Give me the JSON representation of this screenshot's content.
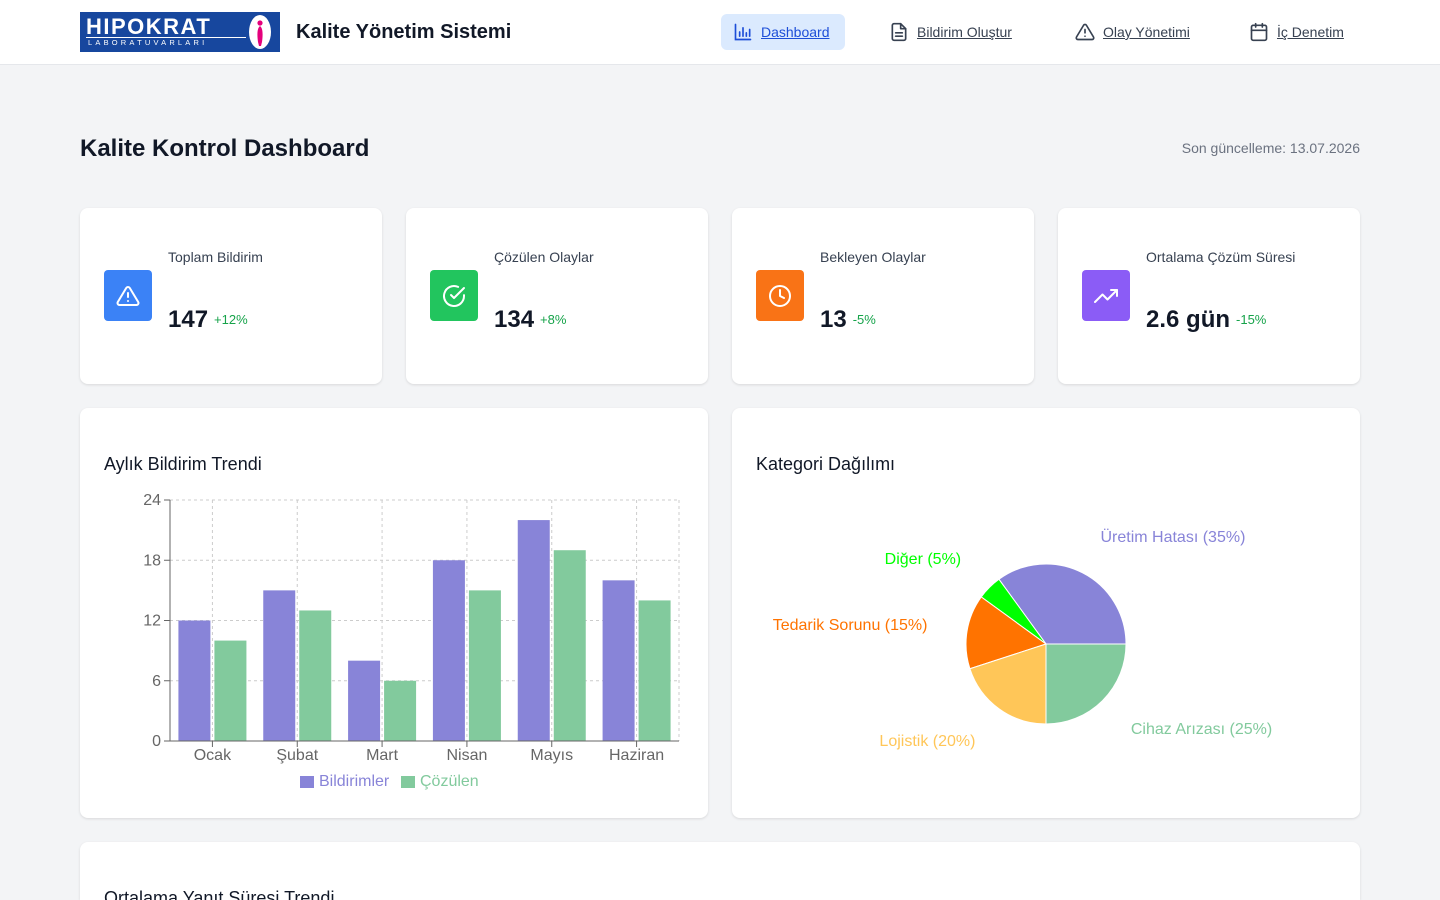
{
  "header": {
    "logo": {
      "word": "HIPOKRAT",
      "sub": "LABORATUVARLARI"
    },
    "app_title": "Kalite Yönetim Sistemi",
    "nav": [
      {
        "label": "Dashboard",
        "icon": "bar-chart-icon",
        "active": true
      },
      {
        "label": "Bildirim Oluştur",
        "icon": "document-icon",
        "active": false
      },
      {
        "label": "Olay Yönetimi",
        "icon": "warning-icon",
        "active": false
      },
      {
        "label": "İç Denetim",
        "icon": "calendar-icon",
        "active": false
      }
    ]
  },
  "page": {
    "title": "Kalite Kontrol Dashboard",
    "last_update": "Son güncelleme: 13.07.2026"
  },
  "stats": [
    {
      "label": "Toplam Bildirim",
      "value": "147",
      "change": "+12%",
      "icon": "warning-icon",
      "color": "#3b82f6"
    },
    {
      "label": "Çözülen Olaylar",
      "value": "134",
      "change": "+8%",
      "icon": "check-circle-icon",
      "color": "#22c55e"
    },
    {
      "label": "Bekleyen Olaylar",
      "value": "13",
      "change": "-5%",
      "icon": "clock-icon",
      "color": "#f97316"
    },
    {
      "label": "Ortalama Çözüm Süresi",
      "value": "2.6 gün",
      "change": "-15%",
      "icon": "trending-up-icon",
      "color": "#8b5cf6"
    }
  ],
  "colors": {
    "change_positive": "#16a34a",
    "nav_active_bg": "#dbeafe",
    "nav_active_text": "#1d4ed8"
  },
  "bar_panel": {
    "title": "Aylık Bildirim Trendi"
  },
  "pie_panel": {
    "title": "Kategori Dağılımı"
  },
  "trend_panel": {
    "title": "Ortalama Yanıt Süresi Trendi"
  },
  "chart_data": [
    {
      "type": "bar",
      "categories": [
        "Ocak",
        "Şubat",
        "Mart",
        "Nisan",
        "Mayıs",
        "Haziran"
      ],
      "series": [
        {
          "name": "Bildirimler",
          "values": [
            12,
            15,
            8,
            18,
            22,
            16
          ],
          "color": "#8884d8"
        },
        {
          "name": "Çözülen",
          "values": [
            10,
            13,
            6,
            15,
            19,
            14
          ],
          "color": "#82ca9d"
        }
      ],
      "yticks": [
        0,
        6,
        12,
        18,
        24
      ],
      "ylim": [
        0,
        24
      ],
      "grid": true,
      "legend": "bottom"
    },
    {
      "type": "pie",
      "slices": [
        {
          "label": "Üretim Hatası (35%)",
          "value": 35,
          "color": "#8884d8"
        },
        {
          "label": "Diğer (5%)",
          "value": 5,
          "color": "#00ff00"
        },
        {
          "label": "Tedarik Sorunu (15%)",
          "value": 15,
          "color": "#ff7300"
        },
        {
          "label": "Lojistik (20%)",
          "value": 20,
          "color": "#ffc658"
        },
        {
          "label": "Cihaz Arızası (25%)",
          "value": 25,
          "color": "#82ca9d"
        }
      ]
    }
  ]
}
